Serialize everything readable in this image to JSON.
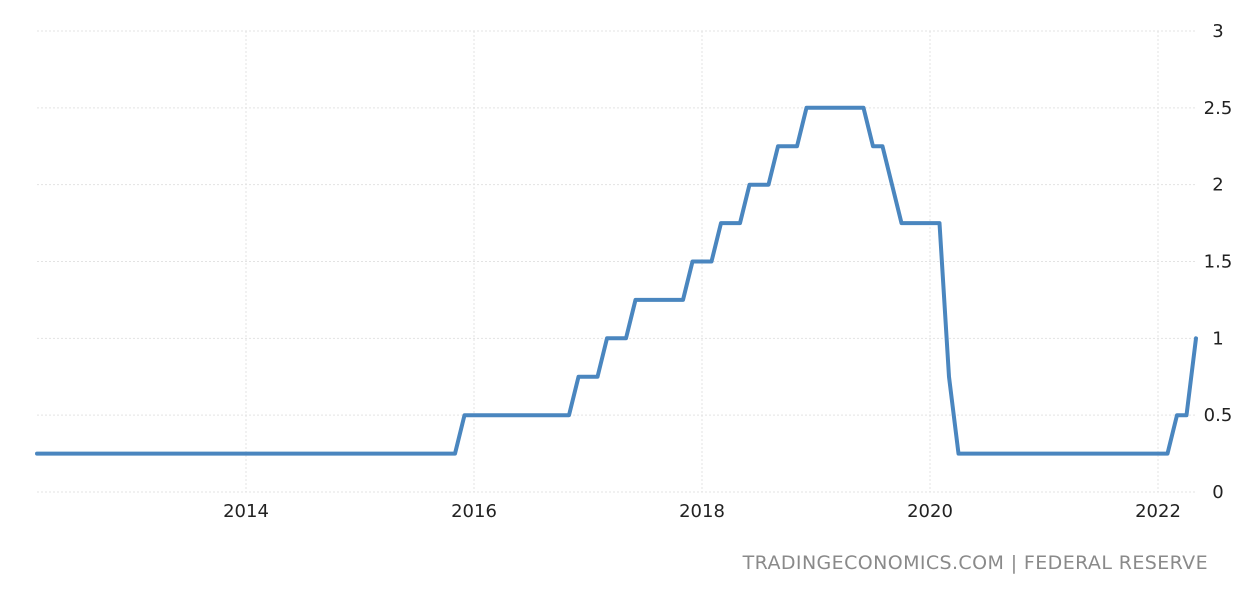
{
  "source": "TRADINGECONOMICS.COM | FEDERAL RESERVE",
  "chart_data": {
    "type": "line",
    "title": "",
    "xlabel": "",
    "ylabel": "",
    "x_tick_labels": [
      "2014",
      "2016",
      "2018",
      "2020",
      "2022"
    ],
    "y_tick_labels": [
      "0",
      "0.5",
      "1",
      "1.5",
      "2",
      "2.5",
      "3"
    ],
    "ylim": [
      0,
      3
    ],
    "xlim": [
      "2012-03",
      "2022-05"
    ],
    "grid": true,
    "legend": "none",
    "y_axis_position": "right",
    "line_color": "#4a86bf",
    "series": [
      {
        "values": [
          {
            "x": "2012-03",
            "y": 0.25
          },
          {
            "x": "2015-11",
            "y": 0.25
          },
          {
            "x": "2015-12",
            "y": 0.5
          },
          {
            "x": "2016-11",
            "y": 0.5
          },
          {
            "x": "2016-12",
            "y": 0.75
          },
          {
            "x": "2017-02",
            "y": 0.75
          },
          {
            "x": "2017-03",
            "y": 1.0
          },
          {
            "x": "2017-05",
            "y": 1.0
          },
          {
            "x": "2017-06",
            "y": 1.25
          },
          {
            "x": "2017-11",
            "y": 1.25
          },
          {
            "x": "2017-12",
            "y": 1.5
          },
          {
            "x": "2018-02",
            "y": 1.5
          },
          {
            "x": "2018-03",
            "y": 1.75
          },
          {
            "x": "2018-05",
            "y": 1.75
          },
          {
            "x": "2018-06",
            "y": 2.0
          },
          {
            "x": "2018-08",
            "y": 2.0
          },
          {
            "x": "2018-09",
            "y": 2.25
          },
          {
            "x": "2018-11",
            "y": 2.25
          },
          {
            "x": "2018-12",
            "y": 2.5
          },
          {
            "x": "2019-06",
            "y": 2.5
          },
          {
            "x": "2019-07",
            "y": 2.25
          },
          {
            "x": "2019-08",
            "y": 2.25
          },
          {
            "x": "2019-09",
            "y": 2.0
          },
          {
            "x": "2019-10",
            "y": 1.75
          },
          {
            "x": "2020-02",
            "y": 1.75
          },
          {
            "x": "2020-03",
            "y": 0.75
          },
          {
            "x": "2020-04",
            "y": 0.25
          },
          {
            "x": "2022-02",
            "y": 0.25
          },
          {
            "x": "2022-03",
            "y": 0.5
          },
          {
            "x": "2022-04",
            "y": 0.5
          },
          {
            "x": "2022-05",
            "y": 1.0
          }
        ]
      }
    ]
  }
}
